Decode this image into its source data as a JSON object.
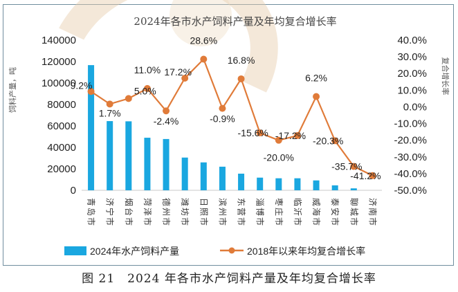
{
  "chart_data": {
    "type": "bar+line",
    "title": "2024年各市水产饲料产量及年均复合增长率",
    "categories": [
      "青岛市",
      "济宁市",
      "烟台市",
      "菏泽市",
      "德州市",
      "潍坊市",
      "日照市",
      "滨州市",
      "东营市",
      "淄博市",
      "枣庄市",
      "临沂市",
      "威海市",
      "泰安市",
      "聊城市",
      "济南市"
    ],
    "series": [
      {
        "name": "2024年水产饲料产量",
        "type": "bar",
        "axis": "left",
        "color": "#1aa7e0",
        "values": [
          116700,
          64500,
          64300,
          49000,
          47800,
          30500,
          26000,
          22000,
          15500,
          11800,
          11200,
          11200,
          9200,
          4600,
          1800,
          0
        ]
      },
      {
        "name": "2018年以来年均复合增长率",
        "type": "line",
        "axis": "right",
        "color": "#e07b39",
        "values": [
          9.2,
          1.7,
          5.0,
          11.0,
          -2.4,
          17.2,
          28.6,
          -0.9,
          16.8,
          -15.6,
          -20.0,
          -17.2,
          6.2,
          -20.3,
          -35.7,
          -41.2
        ],
        "labels": [
          "9.2%",
          "1.7%",
          "5.0%",
          "11.0%",
          "-2.4%",
          "17.2%",
          "28.6%",
          "-0.9%",
          "16.8%",
          "-15.6%",
          "-20.0%",
          "-17.2%",
          "6.2%",
          "-20.3%",
          "-35.7%",
          "-41.2%"
        ]
      }
    ],
    "left_axis": {
      "label": "饲料产量，吨",
      "ylim": [
        0,
        140000
      ],
      "ticks": [
        "0",
        "20000",
        "40000",
        "60000",
        "80000",
        "100000",
        "120000",
        "140000"
      ]
    },
    "right_axis": {
      "label": "复合增长率",
      "ylim": [
        -50,
        40
      ],
      "ticks": [
        "-50.0%",
        "-40.0%",
        "-30.0%",
        "-20.0%",
        "-10.0%",
        "0.0%",
        "10.0%",
        "20.0%",
        "30.0%",
        "40.0%"
      ]
    },
    "grid": false,
    "legend": "bottom"
  },
  "caption": "图 21　2024 年各市水产饲料产量及年均复合增长率"
}
